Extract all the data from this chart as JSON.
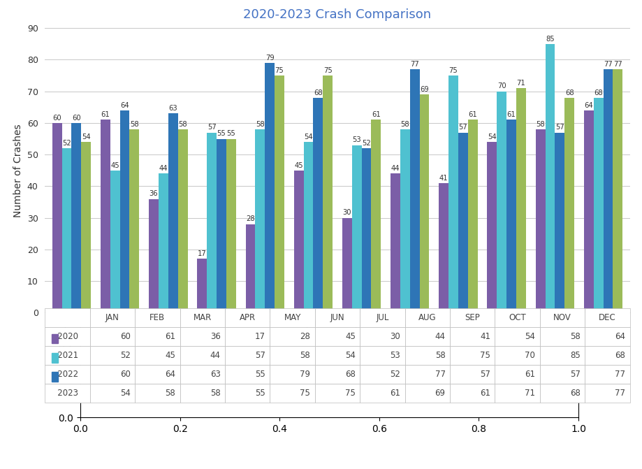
{
  "title": "2020-2023 Crash Comparison",
  "months": [
    "JAN",
    "FEB",
    "MAR",
    "APR",
    "MAY",
    "JUN",
    "JUL",
    "AUG",
    "SEP",
    "OCT",
    "NOV",
    "DEC"
  ],
  "series": {
    "2020": [
      60,
      61,
      36,
      17,
      28,
      45,
      30,
      44,
      41,
      54,
      58,
      64
    ],
    "2021": [
      52,
      45,
      44,
      57,
      58,
      54,
      53,
      58,
      75,
      70,
      85,
      68
    ],
    "2022": [
      60,
      64,
      63,
      55,
      79,
      68,
      52,
      77,
      57,
      61,
      57,
      77
    ],
    "2023": [
      54,
      58,
      58,
      55,
      75,
      75,
      61,
      69,
      61,
      71,
      68,
      77
    ]
  },
  "colors": {
    "2020": "#7B5EA7",
    "2021": "#4FC1D0",
    "2022": "#2E75B6",
    "2023": "#9BBB59"
  },
  "ylabel": "Number of Crashes",
  "ylim": [
    0,
    90
  ],
  "yticks": [
    0,
    10,
    20,
    30,
    40,
    50,
    60,
    70,
    80,
    90
  ],
  "bar_width": 0.2,
  "title_color": "#4472C4",
  "background_color": "#FFFFFF",
  "grid_color": "#C8C8C8"
}
